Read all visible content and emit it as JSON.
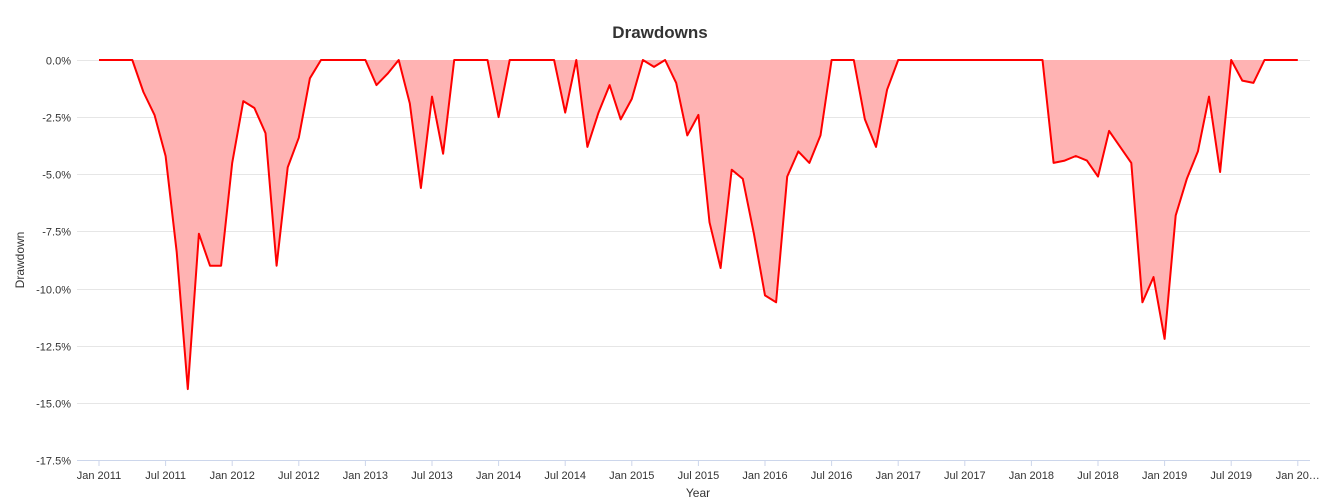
{
  "chart_data": {
    "type": "area",
    "title": "Drawdowns",
    "xlabel": "Year",
    "ylabel": "Drawdown",
    "ylim": [
      -17.5,
      0
    ],
    "y_ticks": [
      0,
      -2.5,
      -5,
      -7.5,
      -10,
      -12.5,
      -15,
      -17.5
    ],
    "y_tick_labels": [
      "0.0%",
      "-2.5%",
      "-5.0%",
      "-7.5%",
      "-10.0%",
      "-12.5%",
      "-15.0%",
      "-17.5%"
    ],
    "x_tick_labels": [
      "Jan 2011",
      "Jul 2011",
      "Jan 2012",
      "Jul 2012",
      "Jan 2013",
      "Jul 2013",
      "Jan 2014",
      "Jul 2014",
      "Jan 2015",
      "Jul 2015",
      "Jan 2016",
      "Jul 2016",
      "Jan 2017",
      "Jul 2017",
      "Jan 2018",
      "Jul 2018",
      "Jan 2019",
      "Jul 2019",
      "Jan 20…"
    ],
    "grid": true,
    "legend": false,
    "colors": {
      "line": "#ff0000",
      "fill": "#ffb3b3"
    },
    "series": [
      {
        "x": [
          "2011-01",
          "2011-02",
          "2011-03",
          "2011-04",
          "2011-05",
          "2011-06",
          "2011-07",
          "2011-08",
          "2011-09",
          "2011-10",
          "2011-11",
          "2011-12",
          "2012-01",
          "2012-02",
          "2012-03",
          "2012-04",
          "2012-05",
          "2012-06",
          "2012-07",
          "2012-08",
          "2012-09",
          "2012-10",
          "2012-11",
          "2012-12",
          "2013-01",
          "2013-02",
          "2013-03",
          "2013-04",
          "2013-05",
          "2013-06",
          "2013-07",
          "2013-08",
          "2013-09",
          "2013-10",
          "2013-11",
          "2013-12",
          "2014-01",
          "2014-02",
          "2014-03",
          "2014-04",
          "2014-05",
          "2014-06",
          "2014-07",
          "2014-08",
          "2014-09",
          "2014-10",
          "2014-11",
          "2014-12",
          "2015-01",
          "2015-02",
          "2015-03",
          "2015-04",
          "2015-05",
          "2015-06",
          "2015-07",
          "2015-08",
          "2015-09",
          "2015-10",
          "2015-11",
          "2015-12",
          "2016-01",
          "2016-02",
          "2016-03",
          "2016-04",
          "2016-05",
          "2016-06",
          "2016-07",
          "2016-08",
          "2016-09",
          "2016-10",
          "2016-11",
          "2016-12",
          "2017-01",
          "2017-02",
          "2017-03",
          "2017-04",
          "2017-05",
          "2017-06",
          "2017-07",
          "2017-08",
          "2017-09",
          "2017-10",
          "2017-11",
          "2017-12",
          "2018-01",
          "2018-02",
          "2018-03",
          "2018-04",
          "2018-05",
          "2018-06",
          "2018-07",
          "2018-08",
          "2018-09",
          "2018-10",
          "2018-11",
          "2018-12",
          "2019-01",
          "2019-02",
          "2019-03",
          "2019-04",
          "2019-05",
          "2019-06",
          "2019-07",
          "2019-08",
          "2019-09",
          "2019-10",
          "2019-11",
          "2019-12",
          "2020-01"
        ],
        "values": [
          0,
          0,
          0,
          0,
          -1.4,
          -2.4,
          -4.2,
          -8.4,
          -14.4,
          -7.6,
          -9.0,
          -9.0,
          -4.5,
          -1.8,
          -2.1,
          -3.2,
          -9.0,
          -4.7,
          -3.4,
          -0.8,
          0,
          0,
          0,
          0,
          0,
          -1.1,
          -0.6,
          0,
          -1.9,
          -5.6,
          -1.6,
          -4.1,
          0,
          0,
          0,
          0,
          -2.5,
          0,
          0,
          0,
          0,
          0,
          -2.3,
          0,
          -3.8,
          -2.3,
          -1.1,
          -2.6,
          -1.7,
          0,
          -0.3,
          0,
          -1.0,
          -3.3,
          -2.4,
          -7.1,
          -9.1,
          -4.8,
          -5.2,
          -7.6,
          -10.3,
          -10.6,
          -5.1,
          -4.0,
          -4.5,
          -3.3,
          0,
          0,
          0,
          -2.6,
          -3.8,
          -1.3,
          0,
          0,
          0,
          0,
          0,
          0,
          0,
          0,
          0,
          0,
          0,
          0,
          0,
          0,
          -4.5,
          -4.4,
          -4.2,
          -4.4,
          -5.1,
          -3.1,
          -3.8,
          -4.5,
          -10.6,
          -9.5,
          -12.2,
          -6.8,
          -5.2,
          -4.0,
          -1.6,
          -4.9,
          0,
          -0.9,
          -1.0,
          0,
          0,
          0,
          0
        ]
      }
    ]
  }
}
